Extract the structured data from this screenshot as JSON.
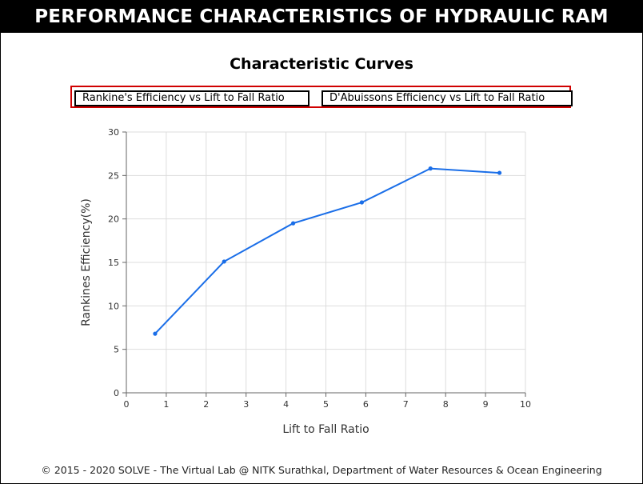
{
  "page": {
    "banner": "PERFORMANCE CHARACTERISTICS OF HYDRAULIC RAM",
    "footer": "© 2015 - 2020 SOLVE - The Virtual Lab @ NITK Surathkal, Department of Water Resources & Ocean Engineering"
  },
  "controls": {
    "rankine_button": "Rankine's Efficiency vs Lift to Fall Ratio",
    "daubuisson_button": "D'Abuissons Efficiency vs Lift to Fall Ratio"
  },
  "colors": {
    "banner_bg": "#000000",
    "button_group_border": "#d00000",
    "line": "#1a6ee8",
    "grid": "#dddddd"
  },
  "chart_data": {
    "type": "line",
    "title": "Characteristic Curves",
    "xlabel": "Lift to Fall Ratio",
    "ylabel": "Rankines Efficiency(%)",
    "xlim": [
      0,
      10
    ],
    "ylim": [
      0,
      30
    ],
    "xticks": [
      0,
      1,
      2,
      3,
      4,
      5,
      6,
      7,
      8,
      9,
      10
    ],
    "yticks": [
      0,
      5,
      10,
      15,
      20,
      25,
      30
    ],
    "grid": true,
    "series": [
      {
        "x": [
          0.72,
          2.45,
          4.18,
          5.9,
          7.62,
          9.35
        ],
        "y": [
          6.8,
          15.1,
          19.5,
          21.9,
          25.8,
          25.3
        ]
      }
    ]
  }
}
